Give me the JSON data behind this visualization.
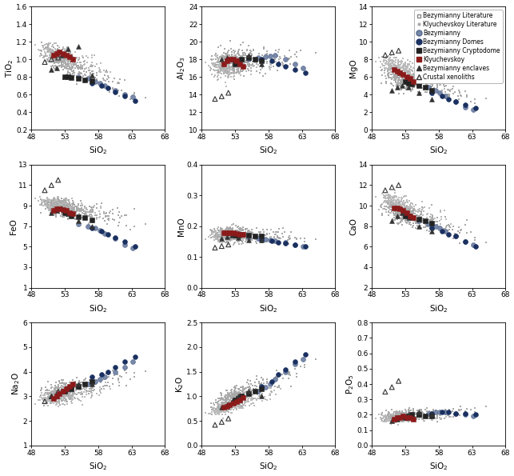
{
  "panels": [
    {
      "ylabel": "TiO$_2$",
      "ylim": [
        0.2,
        1.6
      ],
      "yticks": [
        0.2,
        0.4,
        0.6,
        0.8,
        1.0,
        1.2,
        1.4,
        1.6
      ]
    },
    {
      "ylabel": "Al$_2$O$_3$",
      "ylim": [
        10,
        24
      ],
      "yticks": [
        10,
        12,
        14,
        16,
        18,
        20,
        22,
        24
      ]
    },
    {
      "ylabel": "MgO",
      "ylim": [
        0,
        14
      ],
      "yticks": [
        0,
        2,
        4,
        6,
        8,
        10,
        12,
        14
      ]
    },
    {
      "ylabel": "FeO",
      "ylim": [
        1,
        13
      ],
      "yticks": [
        1,
        3,
        5,
        7,
        9,
        11,
        13
      ]
    },
    {
      "ylabel": "MnO",
      "ylim": [
        0,
        0.4
      ],
      "yticks": [
        0.0,
        0.1,
        0.2,
        0.3,
        0.4
      ]
    },
    {
      "ylabel": "CaO",
      "ylim": [
        2,
        14
      ],
      "yticks": [
        2,
        4,
        6,
        8,
        10,
        12,
        14
      ]
    },
    {
      "ylabel": "Na$_2$O",
      "ylim": [
        1,
        6
      ],
      "yticks": [
        1,
        2,
        3,
        4,
        5,
        6
      ]
    },
    {
      "ylabel": "K$_2$O",
      "ylim": [
        0,
        2.5
      ],
      "yticks": [
        0.0,
        0.5,
        1.0,
        1.5,
        2.0,
        2.5
      ]
    },
    {
      "ylabel": "P$_2$O$_5$",
      "ylim": [
        0,
        0.8
      ],
      "yticks": [
        0.0,
        0.1,
        0.2,
        0.3,
        0.4,
        0.5,
        0.6,
        0.7,
        0.8
      ]
    }
  ],
  "xticks": [
    48,
    53,
    58,
    63,
    68
  ],
  "xlim": [
    48,
    68
  ],
  "bez_lit_color": "#aaaaaa",
  "klyu_lit_color": "#bbbbbb",
  "bez_color": "#7788aa",
  "bez_dome_color": "#1a3060",
  "bez_crypto_color": "#222222",
  "klyu_color": "#8b1a1a",
  "enc_color": "#333333",
  "crust_color": "#333333",
  "legend_fontsize": 5.5,
  "tick_fontsize": 6.5,
  "label_fontsize": 7.5
}
